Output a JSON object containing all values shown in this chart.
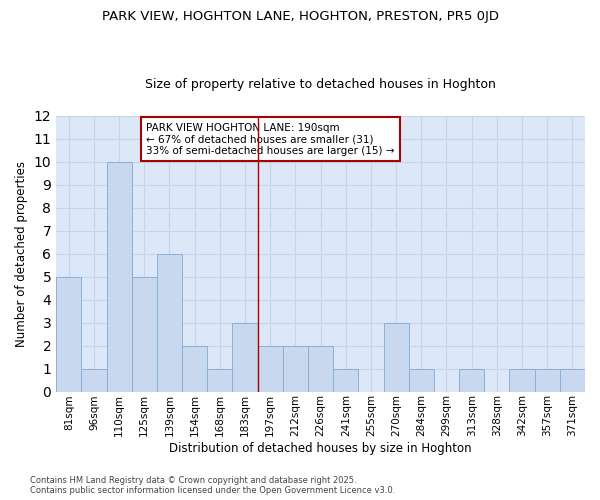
{
  "title": "PARK VIEW, HOGHTON LANE, HOGHTON, PRESTON, PR5 0JD",
  "subtitle": "Size of property relative to detached houses in Hoghton",
  "xlabel": "Distribution of detached houses by size in Hoghton",
  "ylabel": "Number of detached properties",
  "bar_labels": [
    "81sqm",
    "96sqm",
    "110sqm",
    "125sqm",
    "139sqm",
    "154sqm",
    "168sqm",
    "183sqm",
    "197sqm",
    "212sqm",
    "226sqm",
    "241sqm",
    "255sqm",
    "270sqm",
    "284sqm",
    "299sqm",
    "313sqm",
    "328sqm",
    "342sqm",
    "357sqm",
    "371sqm"
  ],
  "bar_values": [
    5,
    1,
    10,
    5,
    6,
    2,
    1,
    3,
    2,
    2,
    2,
    1,
    0,
    3,
    1,
    0,
    1,
    0,
    1,
    1,
    1
  ],
  "bar_color": "#c8d8ee",
  "bar_edge_color": "#8ab0d8",
  "grid_color": "#c8d4e8",
  "plot_bg_color": "#dce8f8",
  "figure_bg_color": "#ffffff",
  "vline_x": 7.5,
  "vline_color": "#aa0000",
  "annotation_text": "PARK VIEW HOGHTON LANE: 190sqm\n← 67% of detached houses are smaller (31)\n33% of semi-detached houses are larger (15) →",
  "annotation_box_color": "#ffffff",
  "annotation_box_edge": "#aa0000",
  "ylim": [
    0,
    12
  ],
  "yticks": [
    0,
    1,
    2,
    3,
    4,
    5,
    6,
    7,
    8,
    9,
    10,
    11,
    12
  ],
  "footnote1": "Contains HM Land Registry data © Crown copyright and database right 2025.",
  "footnote2": "Contains public sector information licensed under the Open Government Licence v3.0."
}
